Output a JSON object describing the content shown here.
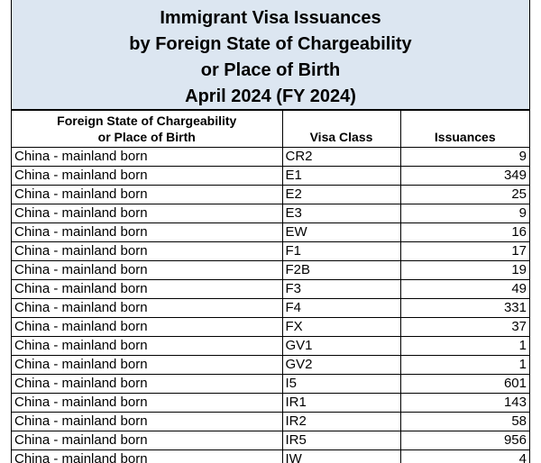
{
  "title": {
    "line1": "Immigrant Visa Issuances",
    "line2": "by Foreign State of Chargeability",
    "line3": "or Place of Birth",
    "line4": "April 2024 (FY 2024)"
  },
  "table": {
    "headers": {
      "state_line1": "Foreign State of Chargeability",
      "state_line2": "or Place of Birth",
      "visa_class": "Visa Class",
      "issuances": "Issuances"
    },
    "rows": [
      {
        "state": "China - mainland born",
        "visa_class": "CR2",
        "issuances": "9"
      },
      {
        "state": "China - mainland born",
        "visa_class": "E1",
        "issuances": "349"
      },
      {
        "state": "China - mainland born",
        "visa_class": "E2",
        "issuances": "25"
      },
      {
        "state": "China - mainland born",
        "visa_class": "E3",
        "issuances": "9"
      },
      {
        "state": "China - mainland born",
        "visa_class": "EW",
        "issuances": "16"
      },
      {
        "state": "China - mainland born",
        "visa_class": "F1",
        "issuances": "17"
      },
      {
        "state": "China - mainland born",
        "visa_class": "F2B",
        "issuances": "19"
      },
      {
        "state": "China - mainland born",
        "visa_class": "F3",
        "issuances": "49"
      },
      {
        "state": "China - mainland born",
        "visa_class": "F4",
        "issuances": "331"
      },
      {
        "state": "China - mainland born",
        "visa_class": "FX",
        "issuances": "37"
      },
      {
        "state": "China - mainland born",
        "visa_class": "GV1",
        "issuances": "1"
      },
      {
        "state": "China - mainland born",
        "visa_class": "GV2",
        "issuances": "1"
      },
      {
        "state": "China - mainland born",
        "visa_class": "I5",
        "issuances": "601"
      },
      {
        "state": "China - mainland born",
        "visa_class": "IR1",
        "issuances": "143"
      },
      {
        "state": "China - mainland born",
        "visa_class": "IR2",
        "issuances": "58"
      },
      {
        "state": "China - mainland born",
        "visa_class": "IR5",
        "issuances": "956"
      },
      {
        "state": "China - mainland born",
        "visa_class": "IW",
        "issuances": "4"
      }
    ]
  },
  "colors": {
    "title_background": "#dce6f1",
    "border": "#000000"
  }
}
